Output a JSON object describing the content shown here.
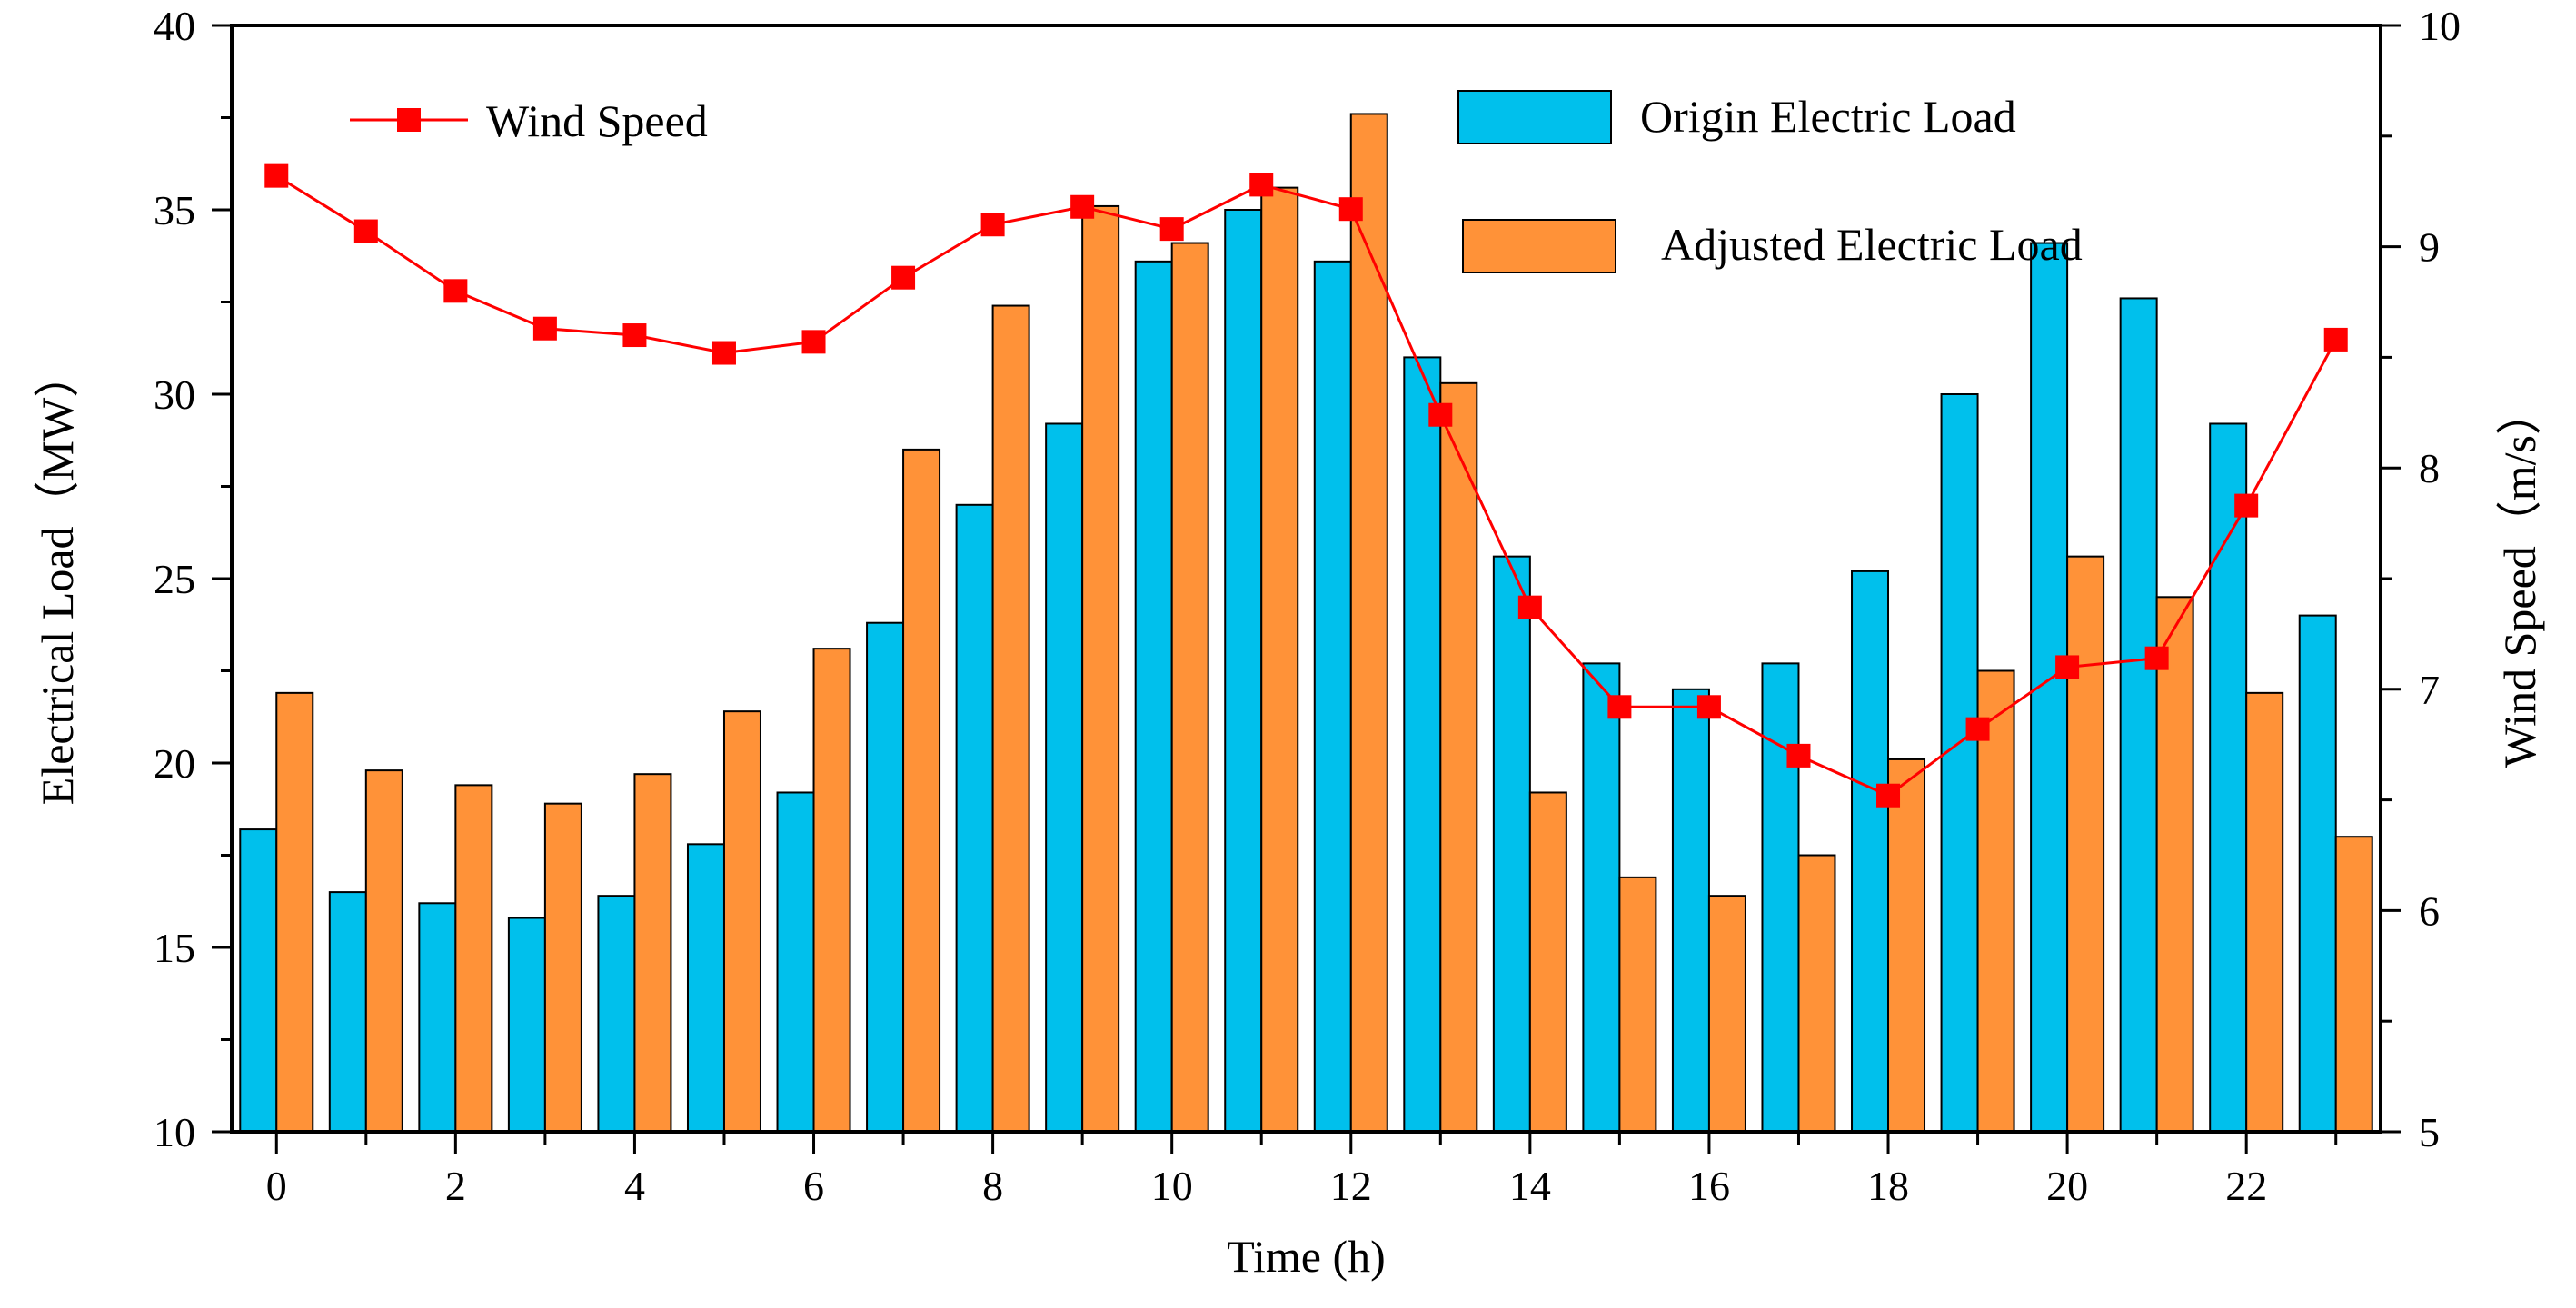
{
  "chart_data": {
    "type": "bar+line",
    "x": [
      0,
      1,
      2,
      3,
      4,
      5,
      6,
      7,
      8,
      9,
      10,
      11,
      12,
      13,
      14,
      15,
      16,
      17,
      18,
      19,
      20,
      21,
      22,
      23
    ],
    "xlabel": "Time (h)",
    "x_tick_labels": [
      "0",
      "2",
      "4",
      "6",
      "8",
      "10",
      "12",
      "14",
      "16",
      "18",
      "20",
      "22"
    ],
    "left_axis": {
      "label": "Electrical Load（MW）",
      "ylim": [
        10,
        40
      ],
      "tick_labels": [
        "10",
        "15",
        "20",
        "25",
        "30",
        "35",
        "40"
      ]
    },
    "right_axis": {
      "label": "Wind Speed（m/s）",
      "ylim": [
        5,
        10
      ],
      "tick_labels": [
        "5",
        "6",
        "7",
        "8",
        "9",
        "10"
      ]
    },
    "series": [
      {
        "name": "Origin Electric Load",
        "kind": "bar",
        "axis": "left",
        "color": "#00C0EC",
        "values": [
          18.2,
          16.5,
          16.2,
          15.8,
          16.4,
          17.8,
          19.2,
          23.8,
          27.0,
          29.2,
          33.6,
          35.0,
          33.6,
          31.0,
          25.6,
          22.7,
          22.0,
          22.7,
          25.2,
          30.0,
          34.1,
          32.6,
          29.2,
          24.0
        ]
      },
      {
        "name": "Adjusted Electric Load",
        "kind": "bar",
        "axis": "left",
        "color": "#FF9238",
        "values": [
          21.9,
          19.8,
          19.4,
          18.9,
          19.7,
          21.4,
          23.1,
          28.5,
          32.4,
          35.1,
          34.1,
          35.6,
          37.6,
          30.3,
          19.2,
          16.9,
          16.4,
          17.5,
          20.1,
          22.5,
          25.6,
          24.5,
          21.9,
          18.0
        ]
      },
      {
        "name": "Wind Speed",
        "kind": "line",
        "axis": "right",
        "color": "#FF0000",
        "marker": "square",
        "values": [
          9.32,
          9.07,
          8.8,
          8.63,
          8.6,
          8.52,
          8.57,
          8.86,
          9.1,
          9.18,
          9.08,
          9.28,
          9.17,
          8.24,
          7.37,
          6.92,
          6.92,
          6.7,
          6.52,
          6.82,
          7.1,
          7.14,
          7.83,
          8.58
        ]
      }
    ]
  }
}
